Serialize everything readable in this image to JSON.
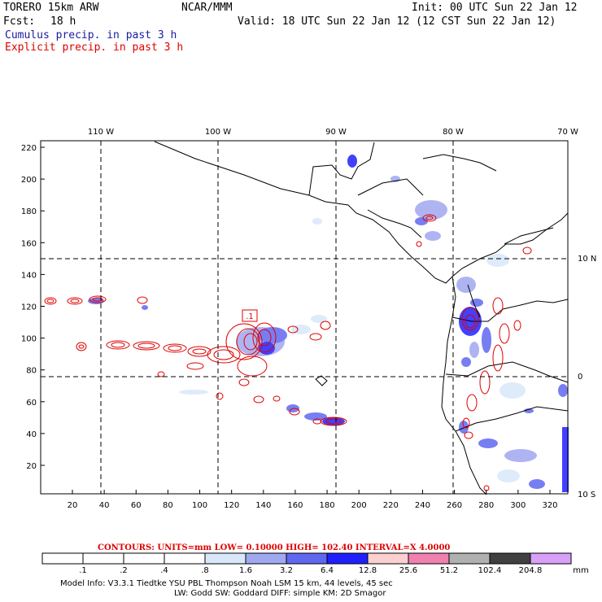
{
  "header": {
    "model": "TORERO  15km ARW",
    "org": "NCAR/MMM",
    "init": "Init: 00 UTC Sun 22 Jan 12",
    "fcst_label": "Fcst:",
    "fcst_value": "18 h",
    "valid": "Valid: 18 UTC Sun 22 Jan 12 (12 CST Sun 22 Jan 12)",
    "cumulus_label": "Cumulus precip. in past 3 h",
    "explicit_label": "Explicit precip. in past 3 h"
  },
  "colors": {
    "cumulus": "#1a1aa0",
    "explicit": "#e00000",
    "map_lines": "#000000",
    "grid": "#000000"
  },
  "map": {
    "top_lon_labels": [
      "110 W",
      "100 W",
      "90 W",
      "80 W",
      "70 W"
    ],
    "right_lat_labels": [
      "10 N",
      "0",
      "10 S"
    ],
    "y_ticks": [
      "220",
      "200",
      "180",
      "160",
      "140",
      "120",
      "100",
      "80",
      "60",
      "40",
      "20"
    ],
    "x_ticks": [
      "20",
      "40",
      "60",
      "80",
      "100",
      "120",
      "140",
      "160",
      "180",
      "200",
      "220",
      "240",
      "260",
      "280",
      "300",
      "320"
    ],
    "high_marker": ".1"
  },
  "contours": {
    "text": "CONTOURS:  UNITS=mm  LOW= 0.10000       HIGH=  102.40       INTERVAL=X  4.0000"
  },
  "colorbar": {
    "unit": "mm",
    "labels": [
      ".1",
      ".2",
      ".4",
      ".8",
      "1.6",
      "3.2",
      "6.4",
      "12.8",
      "25.6",
      "51.2",
      "102.4",
      "204.8"
    ],
    "colors": [
      "#ffffff",
      "#ffffff",
      "#ffffff",
      "#ffffff",
      "#d8e8fa",
      "#a0a8f0",
      "#6068f0",
      "#2020ff",
      "#fcd0d0",
      "#f080b0",
      "#b0b0b0",
      "#404040",
      "#d8a0f8"
    ]
  },
  "footer": {
    "line1": "Model Info: V3.3.1    Tiedtke YSU PBL   Thompson     Noah LSM  15 km,   44 levels,   45 sec",
    "line2": "LW: Godd SW: Goddard DIFF: simple KM: 2D Smagor"
  }
}
